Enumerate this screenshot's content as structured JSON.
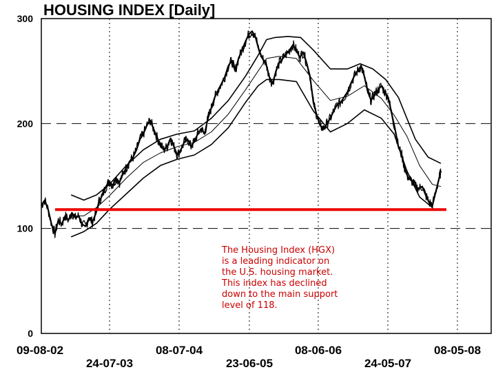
{
  "chart_data": {
    "type": "line",
    "title": "HOUSING INDEX  [Daily]",
    "ylim": [
      0,
      300
    ],
    "y_ticks": [
      "300",
      "200",
      "100",
      "0"
    ],
    "x_ticks": [
      "09-08-02",
      "24-07-03",
      "08-07-04",
      "23-06-05",
      "08-06-06",
      "24-05-07",
      "08-05-08"
    ],
    "grid": true,
    "support_level": 118,
    "support_color": "#ee0000",
    "annotation_lines": [
      "The Housing Index (HGX)",
      "is a leading indicator on",
      "the U.S. housing market.",
      "This index has declined",
      "down to the main support",
      "level of 118."
    ],
    "annotation_color": "#cc0000",
    "series": [
      {
        "kind": "price",
        "points": [
          [
            0,
            122
          ],
          [
            4,
            127
          ],
          [
            8,
            118
          ],
          [
            12,
            104
          ],
          [
            16,
            95
          ],
          [
            20,
            108
          ],
          [
            24,
            104
          ],
          [
            28,
            112
          ],
          [
            32,
            108
          ],
          [
            36,
            115
          ],
          [
            40,
            110
          ],
          [
            44,
            112
          ],
          [
            48,
            104
          ],
          [
            52,
            102
          ],
          [
            56,
            110
          ],
          [
            60,
            106
          ],
          [
            64,
            114
          ],
          [
            68,
            126
          ],
          [
            72,
            132
          ],
          [
            76,
            140
          ],
          [
            80,
            145
          ],
          [
            84,
            141
          ],
          [
            88,
            148
          ],
          [
            92,
            144
          ],
          [
            96,
            152
          ],
          [
            100,
            158
          ],
          [
            104,
            164
          ],
          [
            108,
            168
          ],
          [
            112,
            175
          ],
          [
            116,
            185
          ],
          [
            120,
            190
          ],
          [
            124,
            198
          ],
          [
            128,
            203
          ],
          [
            132,
            195
          ],
          [
            136,
            187
          ],
          [
            140,
            180
          ],
          [
            144,
            175
          ],
          [
            148,
            178
          ],
          [
            152,
            186
          ],
          [
            156,
            178
          ],
          [
            160,
            170
          ],
          [
            164,
            175
          ],
          [
            168,
            182
          ],
          [
            172,
            185
          ],
          [
            176,
            178
          ],
          [
            180,
            183
          ],
          [
            184,
            190
          ],
          [
            188,
            195
          ],
          [
            192,
            190
          ],
          [
            196,
            205
          ],
          [
            200,
            215
          ],
          [
            204,
            225
          ],
          [
            208,
            232
          ],
          [
            212,
            238
          ],
          [
            216,
            245
          ],
          [
            220,
            255
          ],
          [
            224,
            260
          ],
          [
            228,
            250
          ],
          [
            232,
            262
          ],
          [
            236,
            270
          ],
          [
            240,
            278
          ],
          [
            244,
            285
          ],
          [
            248,
            288
          ],
          [
            252,
            282
          ],
          [
            256,
            270
          ],
          [
            260,
            262
          ],
          [
            264,
            258
          ],
          [
            268,
            245
          ],
          [
            272,
            238
          ],
          [
            276,
            250
          ],
          [
            280,
            258
          ],
          [
            284,
            262
          ],
          [
            288,
            266
          ],
          [
            292,
            270
          ],
          [
            296,
            275
          ],
          [
            300,
            270
          ],
          [
            304,
            263
          ],
          [
            308,
            268
          ],
          [
            312,
            258
          ],
          [
            316,
            245
          ],
          [
            320,
            220
          ],
          [
            324,
            208
          ],
          [
            328,
            198
          ],
          [
            332,
            195
          ],
          [
            336,
            200
          ],
          [
            340,
            205
          ],
          [
            344,
            212
          ],
          [
            348,
            218
          ],
          [
            352,
            220
          ],
          [
            356,
            225
          ],
          [
            360,
            230
          ],
          [
            364,
            238
          ],
          [
            368,
            245
          ],
          [
            372,
            250
          ],
          [
            376,
            255
          ],
          [
            380,
            245
          ],
          [
            384,
            230
          ],
          [
            388,
            222
          ],
          [
            392,
            228
          ],
          [
            396,
            232
          ],
          [
            400,
            236
          ],
          [
            404,
            230
          ],
          [
            408,
            225
          ],
          [
            412,
            210
          ],
          [
            416,
            195
          ],
          [
            420,
            178
          ],
          [
            424,
            170
          ],
          [
            428,
            155
          ],
          [
            432,
            148
          ],
          [
            436,
            145
          ],
          [
            440,
            140
          ],
          [
            444,
            138
          ],
          [
            448,
            140
          ],
          [
            452,
            132
          ],
          [
            456,
            125
          ],
          [
            460,
            122
          ],
          [
            464,
            135
          ],
          [
            468,
            148
          ],
          [
            470,
            155
          ]
        ]
      },
      {
        "kind": "upper_band",
        "points": [
          [
            35,
            132
          ],
          [
            50,
            127
          ],
          [
            65,
            132
          ],
          [
            80,
            142
          ],
          [
            100,
            160
          ],
          [
            120,
            175
          ],
          [
            140,
            185
          ],
          [
            160,
            190
          ],
          [
            180,
            193
          ],
          [
            200,
            205
          ],
          [
            220,
            222
          ],
          [
            240,
            245
          ],
          [
            255,
            265
          ],
          [
            265,
            280
          ],
          [
            275,
            282
          ],
          [
            290,
            283
          ],
          [
            305,
            282
          ],
          [
            320,
            270
          ],
          [
            340,
            252
          ],
          [
            360,
            252
          ],
          [
            375,
            257
          ],
          [
            390,
            252
          ],
          [
            405,
            242
          ],
          [
            420,
            225
          ],
          [
            440,
            185
          ],
          [
            455,
            168
          ],
          [
            470,
            162
          ]
        ]
      },
      {
        "kind": "lower_band",
        "points": [
          [
            35,
            92
          ],
          [
            50,
            97
          ],
          [
            65,
            105
          ],
          [
            80,
            118
          ],
          [
            100,
            133
          ],
          [
            120,
            148
          ],
          [
            140,
            160
          ],
          [
            160,
            166
          ],
          [
            180,
            170
          ],
          [
            200,
            180
          ],
          [
            220,
            196
          ],
          [
            240,
            220
          ],
          [
            255,
            236
          ],
          [
            265,
            242
          ],
          [
            280,
            242
          ],
          [
            300,
            240
          ],
          [
            320,
            212
          ],
          [
            340,
            192
          ],
          [
            360,
            200
          ],
          [
            380,
            213
          ],
          [
            400,
            205
          ],
          [
            415,
            190
          ],
          [
            430,
            155
          ],
          [
            445,
            130
          ],
          [
            460,
            120
          ]
        ]
      },
      {
        "kind": "mid_band",
        "points": [
          [
            35,
            112
          ],
          [
            50,
            112
          ],
          [
            65,
            120
          ],
          [
            80,
            131
          ],
          [
            100,
            148
          ],
          [
            120,
            163
          ],
          [
            140,
            172
          ],
          [
            160,
            178
          ],
          [
            180,
            182
          ],
          [
            200,
            192
          ],
          [
            220,
            209
          ],
          [
            240,
            232
          ],
          [
            255,
            250
          ],
          [
            265,
            262
          ],
          [
            280,
            264
          ],
          [
            300,
            262
          ],
          [
            320,
            241
          ],
          [
            340,
            222
          ],
          [
            360,
            226
          ],
          [
            380,
            236
          ],
          [
            400,
            224
          ],
          [
            415,
            208
          ],
          [
            430,
            188
          ],
          [
            445,
            160
          ],
          [
            460,
            142
          ],
          [
            470,
            140
          ]
        ]
      }
    ]
  }
}
